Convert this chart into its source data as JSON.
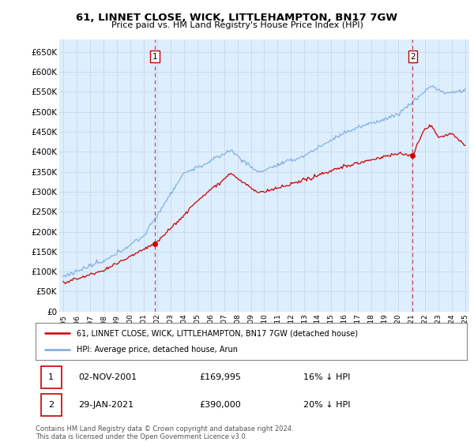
{
  "title": "61, LINNET CLOSE, WICK, LITTLEHAMPTON, BN17 7GW",
  "subtitle": "Price paid vs. HM Land Registry's House Price Index (HPI)",
  "bg_color": "#ffffff",
  "plot_bg_color": "#ddeeff",
  "grid_color": "#c8d8e8",
  "hpi_color": "#7aaadd",
  "price_color": "#cc0000",
  "sale1_date_label": "02-NOV-2001",
  "sale1_price": 169995,
  "sale1_hpi_pct": "16% ↓ HPI",
  "sale2_date_label": "29-JAN-2021",
  "sale2_price": 390000,
  "sale2_hpi_pct": "20% ↓ HPI",
  "legend_line1": "61, LINNET CLOSE, WICK, LITTLEHAMPTON, BN17 7GW (detached house)",
  "legend_line2": "HPI: Average price, detached house, Arun",
  "footnote": "Contains HM Land Registry data © Crown copyright and database right 2024.\nThis data is licensed under the Open Government Licence v3.0.",
  "ylim": [
    0,
    680000
  ],
  "yticks": [
    0,
    50000,
    100000,
    150000,
    200000,
    250000,
    300000,
    350000,
    400000,
    450000,
    500000,
    550000,
    600000,
    650000
  ],
  "sale1_year": 2001.84,
  "sale2_year": 2021.08,
  "xmin": 1995,
  "xmax": 2025
}
